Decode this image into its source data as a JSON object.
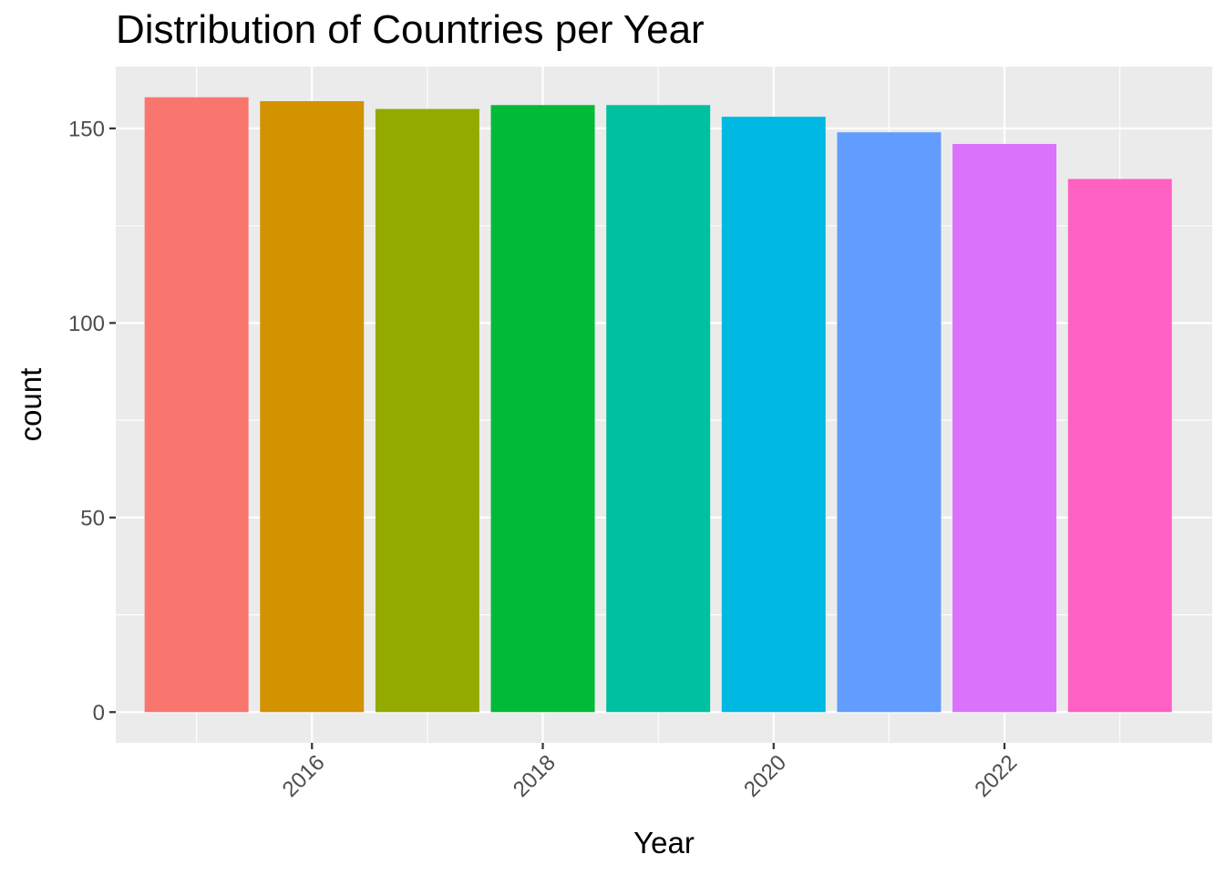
{
  "chart_data": {
    "type": "bar",
    "title": "Distribution of Countries per Year",
    "xlabel": "Year",
    "ylabel": "count",
    "categories": [
      2015,
      2016,
      2017,
      2018,
      2019,
      2020,
      2021,
      2022,
      2023
    ],
    "values": [
      158,
      157,
      155,
      156,
      156,
      153,
      149,
      146,
      137
    ],
    "colors": [
      "#F8766D",
      "#D39200",
      "#93AA00",
      "#00BA38",
      "#00C19F",
      "#00B9E3",
      "#619CFF",
      "#DB72FB",
      "#FF61C3"
    ],
    "xticks": [
      2016,
      2018,
      2020,
      2022
    ],
    "xtick_labels": [
      "2016",
      "2018",
      "2020",
      "2022"
    ],
    "yticks": [
      0,
      50,
      100,
      150
    ],
    "ytick_labels": [
      "0",
      "50",
      "100",
      "150"
    ],
    "xlim": [
      2014.3,
      2023.8
    ],
    "ylim": [
      -7.9,
      165.9
    ],
    "grid": true,
    "legend": "none",
    "panel_background": "#EBEBEB",
    "grid_color": "#FFFFFF"
  }
}
